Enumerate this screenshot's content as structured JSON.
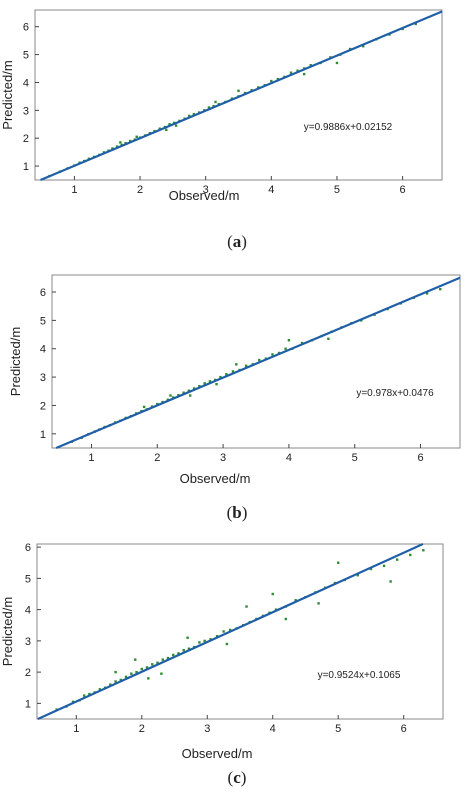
{
  "chart_data": [
    {
      "type": "scatter",
      "panel_label": "a",
      "xlabel": "Observed/m",
      "ylabel": "Predicted/m",
      "xlim": [
        0.4,
        6.6
      ],
      "ylim": [
        0.5,
        6.6
      ],
      "xticks": [
        1,
        2,
        3,
        4,
        5,
        6
      ],
      "yticks": [
        1,
        2,
        3,
        4,
        5,
        6
      ],
      "fit": {
        "slope": 0.9886,
        "intercept": 0.02152,
        "label": "y=0.9886x+0.02152"
      },
      "points": [
        [
          0.62,
          0.64
        ],
        [
          0.78,
          0.8
        ],
        [
          0.9,
          0.92
        ],
        [
          1.0,
          1.02
        ],
        [
          1.08,
          1.12
        ],
        [
          1.15,
          1.18
        ],
        [
          1.22,
          1.26
        ],
        [
          1.3,
          1.33
        ],
        [
          1.38,
          1.4
        ],
        [
          1.45,
          1.49
        ],
        [
          1.52,
          1.55
        ],
        [
          1.58,
          1.63
        ],
        [
          1.65,
          1.7
        ],
        [
          1.72,
          1.76
        ],
        [
          1.78,
          1.82
        ],
        [
          1.85,
          1.9
        ],
        [
          1.92,
          1.95
        ],
        [
          2.0,
          2.02
        ],
        [
          2.08,
          2.1
        ],
        [
          2.15,
          2.18
        ],
        [
          2.22,
          2.25
        ],
        [
          2.3,
          2.34
        ],
        [
          2.38,
          2.4
        ],
        [
          2.45,
          2.5
        ],
        [
          2.52,
          2.55
        ],
        [
          2.6,
          2.62
        ],
        [
          2.68,
          2.7
        ],
        [
          2.75,
          2.8
        ],
        [
          2.82,
          2.86
        ],
        [
          2.9,
          2.92
        ],
        [
          2.98,
          3.0
        ],
        [
          3.05,
          3.1
        ],
        [
          3.12,
          3.15
        ],
        [
          3.2,
          3.22
        ],
        [
          3.3,
          3.3
        ],
        [
          3.4,
          3.42
        ],
        [
          3.5,
          3.5
        ],
        [
          3.6,
          3.62
        ],
        [
          3.7,
          3.72
        ],
        [
          3.8,
          3.82
        ],
        [
          3.9,
          3.9
        ],
        [
          4.0,
          4.05
        ],
        [
          4.1,
          4.12
        ],
        [
          4.2,
          4.2
        ],
        [
          4.3,
          4.35
        ],
        [
          4.4,
          4.42
        ],
        [
          4.5,
          4.5
        ],
        [
          4.6,
          4.62
        ],
        [
          4.75,
          4.7
        ],
        [
          4.9,
          4.9
        ],
        [
          5.05,
          5.0
        ],
        [
          5.2,
          5.2
        ],
        [
          5.4,
          5.3
        ],
        [
          5.6,
          5.55
        ],
        [
          5.8,
          5.72
        ],
        [
          6.0,
          5.92
        ],
        [
          6.2,
          6.1
        ],
        [
          1.7,
          1.85
        ],
        [
          2.4,
          2.3
        ],
        [
          3.5,
          3.7
        ],
        [
          4.5,
          4.3
        ],
        [
          5.0,
          4.7
        ],
        [
          1.95,
          2.05
        ],
        [
          2.55,
          2.45
        ],
        [
          3.15,
          3.3
        ]
      ]
    },
    {
      "type": "scatter",
      "panel_label": "b",
      "xlabel": "Observed/m",
      "ylabel": "Predicted/m",
      "xlim": [
        0.4,
        6.6
      ],
      "ylim": [
        0.5,
        6.6
      ],
      "xticks": [
        1,
        2,
        3,
        4,
        5,
        6
      ],
      "yticks": [
        1,
        2,
        3,
        4,
        5,
        6
      ],
      "fit": {
        "slope": 0.978,
        "intercept": 0.0476,
        "label": "y=0.978x+0.0476"
      },
      "points": [
        [
          0.7,
          0.72
        ],
        [
          0.85,
          0.86
        ],
        [
          0.95,
          0.98
        ],
        [
          1.05,
          1.08
        ],
        [
          1.12,
          1.15
        ],
        [
          1.2,
          1.24
        ],
        [
          1.28,
          1.3
        ],
        [
          1.36,
          1.4
        ],
        [
          1.44,
          1.46
        ],
        [
          1.52,
          1.56
        ],
        [
          1.6,
          1.62
        ],
        [
          1.68,
          1.72
        ],
        [
          1.76,
          1.8
        ],
        [
          1.84,
          1.86
        ],
        [
          1.92,
          1.96
        ],
        [
          2.0,
          2.05
        ],
        [
          2.08,
          2.12
        ],
        [
          2.16,
          2.2
        ],
        [
          2.24,
          2.28
        ],
        [
          2.32,
          2.36
        ],
        [
          2.4,
          2.45
        ],
        [
          2.48,
          2.52
        ],
        [
          2.56,
          2.6
        ],
        [
          2.64,
          2.68
        ],
        [
          2.72,
          2.78
        ],
        [
          2.8,
          2.85
        ],
        [
          2.88,
          2.9
        ],
        [
          2.96,
          3.0
        ],
        [
          3.05,
          3.1
        ],
        [
          3.15,
          3.2
        ],
        [
          3.25,
          3.25
        ],
        [
          3.35,
          3.4
        ],
        [
          3.45,
          3.45
        ],
        [
          3.55,
          3.6
        ],
        [
          3.65,
          3.65
        ],
        [
          3.75,
          3.8
        ],
        [
          3.85,
          3.85
        ],
        [
          3.95,
          4.0
        ],
        [
          4.05,
          4.0
        ],
        [
          4.2,
          4.2
        ],
        [
          4.35,
          4.3
        ],
        [
          4.5,
          4.45
        ],
        [
          4.65,
          4.6
        ],
        [
          4.8,
          4.75
        ],
        [
          4.95,
          4.9
        ],
        [
          5.1,
          5.0
        ],
        [
          5.3,
          5.2
        ],
        [
          5.5,
          5.4
        ],
        [
          5.7,
          5.6
        ],
        [
          5.9,
          5.8
        ],
        [
          6.1,
          5.95
        ],
        [
          6.3,
          6.1
        ],
        [
          1.8,
          1.95
        ],
        [
          2.5,
          2.35
        ],
        [
          3.2,
          3.45
        ],
        [
          4.0,
          4.3
        ],
        [
          4.6,
          4.35
        ],
        [
          2.2,
          2.35
        ],
        [
          2.9,
          2.75
        ]
      ]
    },
    {
      "type": "scatter",
      "panel_label": "c",
      "xlabel": "Observed/m",
      "ylabel": "Predicted/m",
      "xlim": [
        0.4,
        6.6
      ],
      "ylim": [
        0.5,
        6.1
      ],
      "xticks": [
        1,
        2,
        3,
        4,
        5,
        6
      ],
      "yticks": [
        1,
        2,
        3,
        4,
        5,
        6
      ],
      "fit": {
        "slope": 0.9524,
        "intercept": 0.1065,
        "label": "y=0.9524x+0.1065"
      },
      "points": [
        [
          0.7,
          0.8
        ],
        [
          0.85,
          0.9
        ],
        [
          0.95,
          1.05
        ],
        [
          1.05,
          1.1
        ],
        [
          1.12,
          1.25
        ],
        [
          1.2,
          1.3
        ],
        [
          1.28,
          1.35
        ],
        [
          1.36,
          1.45
        ],
        [
          1.44,
          1.5
        ],
        [
          1.52,
          1.6
        ],
        [
          1.6,
          1.7
        ],
        [
          1.68,
          1.75
        ],
        [
          1.76,
          1.85
        ],
        [
          1.84,
          1.95
        ],
        [
          1.92,
          2.0
        ],
        [
          2.0,
          2.1
        ],
        [
          2.08,
          2.15
        ],
        [
          2.16,
          2.25
        ],
        [
          2.24,
          2.3
        ],
        [
          2.32,
          2.4
        ],
        [
          2.4,
          2.45
        ],
        [
          2.48,
          2.55
        ],
        [
          2.56,
          2.6
        ],
        [
          2.64,
          2.7
        ],
        [
          2.72,
          2.75
        ],
        [
          2.8,
          2.8
        ],
        [
          2.88,
          2.95
        ],
        [
          2.96,
          3.0
        ],
        [
          3.05,
          3.05
        ],
        [
          3.15,
          3.15
        ],
        [
          3.25,
          3.3
        ],
        [
          3.35,
          3.35
        ],
        [
          3.45,
          3.4
        ],
        [
          3.55,
          3.5
        ],
        [
          3.65,
          3.6
        ],
        [
          3.75,
          3.7
        ],
        [
          3.85,
          3.8
        ],
        [
          3.95,
          3.9
        ],
        [
          4.05,
          4.0
        ],
        [
          4.2,
          4.1
        ],
        [
          4.35,
          4.3
        ],
        [
          4.5,
          4.4
        ],
        [
          4.65,
          4.55
        ],
        [
          4.8,
          4.7
        ],
        [
          4.95,
          4.85
        ],
        [
          5.1,
          4.95
        ],
        [
          5.3,
          5.1
        ],
        [
          5.5,
          5.3
        ],
        [
          5.7,
          5.4
        ],
        [
          5.9,
          5.6
        ],
        [
          6.1,
          5.75
        ],
        [
          6.3,
          5.9
        ],
        [
          1.6,
          2.0
        ],
        [
          2.1,
          1.8
        ],
        [
          2.7,
          3.1
        ],
        [
          3.3,
          2.9
        ],
        [
          4.2,
          3.7
        ],
        [
          4.0,
          4.5
        ],
        [
          5.0,
          5.5
        ],
        [
          5.8,
          4.9
        ],
        [
          1.9,
          2.4
        ],
        [
          2.3,
          1.95
        ],
        [
          3.6,
          4.1
        ],
        [
          4.7,
          4.2
        ]
      ]
    }
  ],
  "captions": [
    {
      "open": "(",
      "letter": "a",
      "close": ")"
    },
    {
      "open": "(",
      "letter": "b",
      "close": ")"
    },
    {
      "open": "(",
      "letter": "c",
      "close": ")"
    }
  ],
  "colors": {
    "points": "#2e8b2e",
    "fit_line": "#1f5fa8",
    "axis": "#444444",
    "frame": "#888888"
  }
}
